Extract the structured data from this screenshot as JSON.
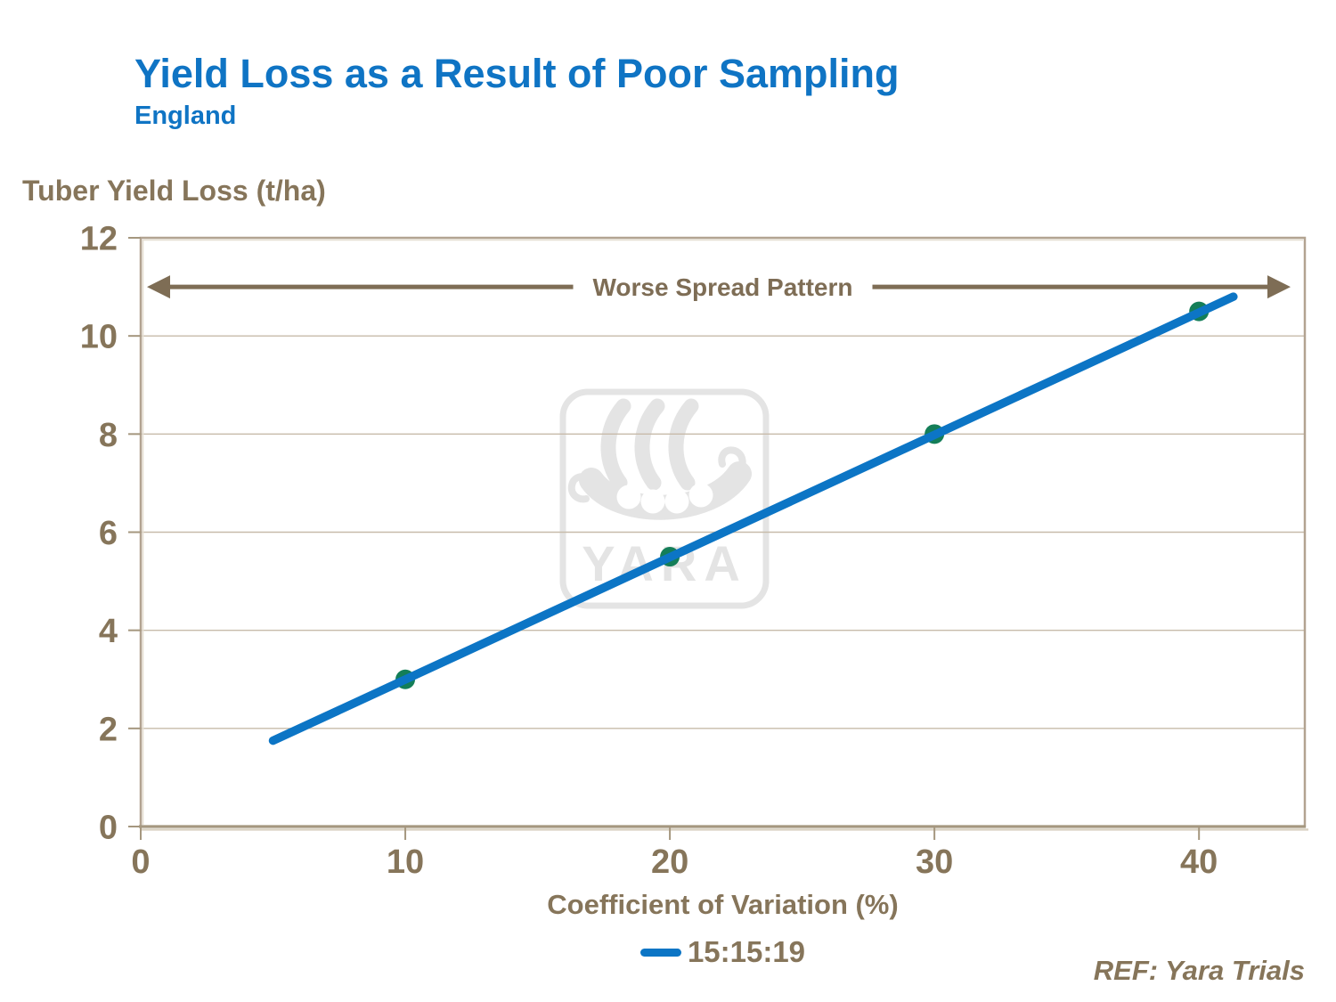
{
  "header": {
    "title": "Yield Loss as a Result of Poor Sampling",
    "subtitle": "England"
  },
  "chart_data": {
    "type": "line",
    "title": "Yield Loss as a Result of Poor Sampling",
    "subtitle": "England",
    "ylabel": "Tuber Yield Loss (t/ha)",
    "xlabel": "Coefficient of Variation (%)",
    "xlim": [
      0,
      44
    ],
    "ylim": [
      0,
      12
    ],
    "x_ticks": [
      0,
      10,
      20,
      30,
      40
    ],
    "y_ticks": [
      0,
      2,
      4,
      6,
      8,
      10,
      12
    ],
    "grid": "horizontal-major",
    "annotation": "Worse Spread Pattern",
    "legend_position": "bottom-center",
    "series": [
      {
        "name": "15:15:19",
        "points": [
          [
            10,
            3
          ],
          [
            20,
            5.5
          ],
          [
            30,
            8
          ],
          [
            40,
            10.5
          ]
        ],
        "trend_line": [
          [
            5,
            1.75
          ],
          [
            41.3,
            10.8
          ]
        ]
      }
    ]
  },
  "watermark": {
    "text": "YARA"
  },
  "footer": {
    "ref": "REF: Yara Trials"
  },
  "colors": {
    "title_blue": "#0f74c4",
    "text_brown": "#86755a",
    "arrow_brown": "#7e6d55",
    "border_tan": "#b2a391",
    "border_light": "#e6dfd3",
    "axis_dark": "#a5977f",
    "grid_tan": "#c7bbaa",
    "line_blue": "#0c75c5",
    "marker_teal": "#147e58",
    "watermark_gray": "#e4e4e4"
  }
}
